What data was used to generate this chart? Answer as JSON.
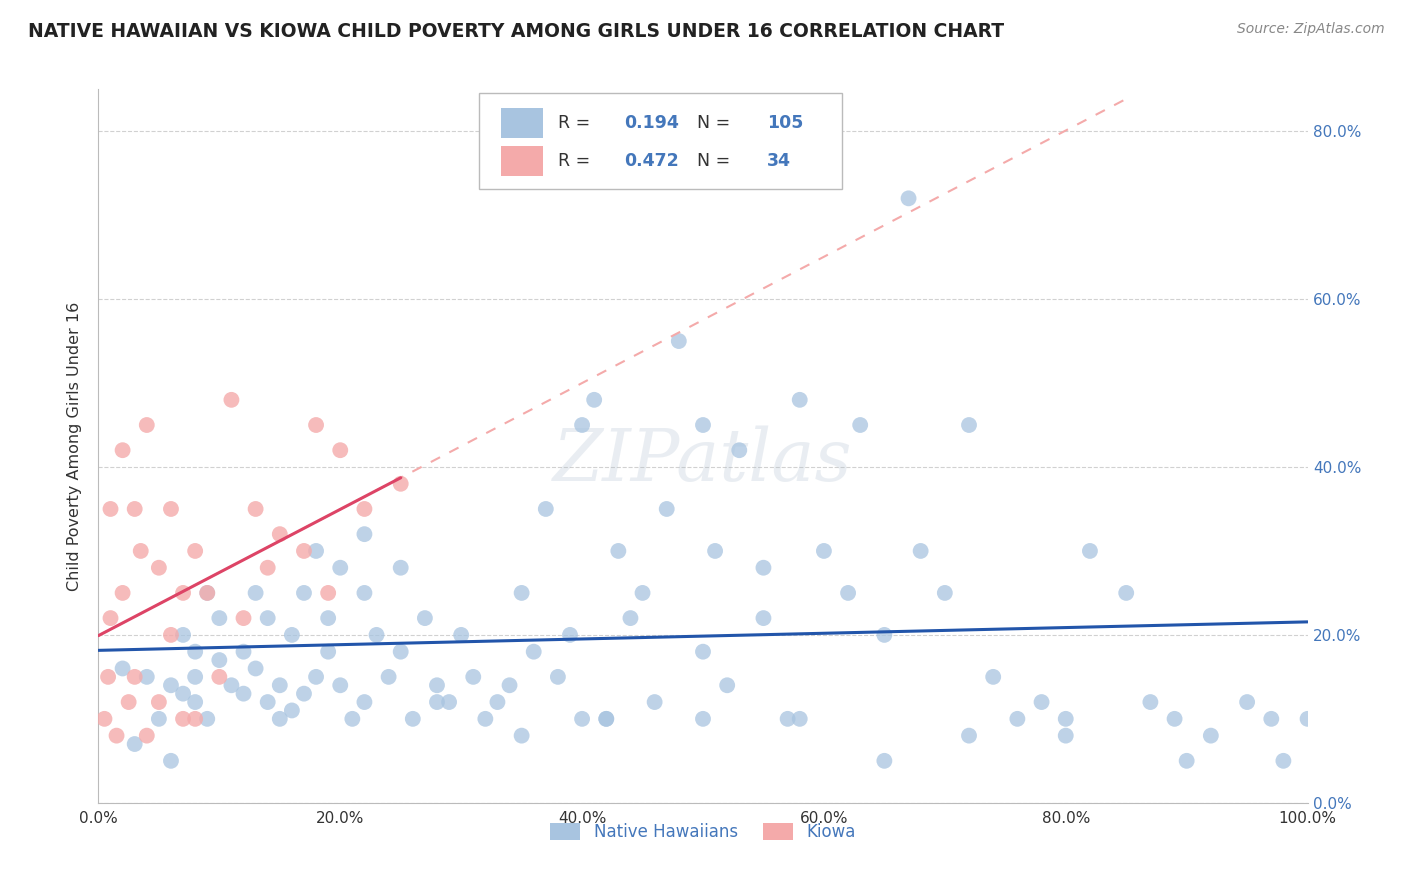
{
  "title": "NATIVE HAWAIIAN VS KIOWA CHILD POVERTY AMONG GIRLS UNDER 16 CORRELATION CHART",
  "source": "Source: ZipAtlas.com",
  "ylabel": "Child Poverty Among Girls Under 16",
  "xlim": [
    0.0,
    1.0
  ],
  "ylim": [
    0.0,
    0.85
  ],
  "x_ticks": [
    0.0,
    0.2,
    0.4,
    0.6,
    0.8,
    1.0
  ],
  "x_ticklabels": [
    "0.0%",
    "20.0%",
    "40.0%",
    "60.0%",
    "80.0%",
    "100.0%"
  ],
  "y_ticks": [
    0.0,
    0.2,
    0.4,
    0.6,
    0.8
  ],
  "y_ticklabels": [
    "0.0%",
    "20.0%",
    "40.0%",
    "60.0%",
    "80.0%"
  ],
  "legend1_label": "Native Hawaiians",
  "legend2_label": "Kiowa",
  "r1": 0.194,
  "n1": 105,
  "r2": 0.472,
  "n2": 34,
  "blue_color": "#A8C4E0",
  "pink_color": "#F4AAAA",
  "blue_line_color": "#2255AA",
  "pink_line_color": "#DD4466",
  "pink_dash_color": "#F4AAAA",
  "background_color": "#FFFFFF",
  "nhaw_x": [
    0.02,
    0.04,
    0.05,
    0.06,
    0.07,
    0.07,
    0.08,
    0.08,
    0.09,
    0.09,
    0.1,
    0.1,
    0.11,
    0.12,
    0.12,
    0.13,
    0.13,
    0.14,
    0.14,
    0.15,
    0.16,
    0.16,
    0.17,
    0.17,
    0.18,
    0.19,
    0.19,
    0.2,
    0.2,
    0.21,
    0.22,
    0.22,
    0.23,
    0.24,
    0.25,
    0.25,
    0.26,
    0.27,
    0.28,
    0.29,
    0.3,
    0.31,
    0.32,
    0.33,
    0.34,
    0.35,
    0.36,
    0.37,
    0.38,
    0.39,
    0.4,
    0.4,
    0.41,
    0.42,
    0.43,
    0.44,
    0.45,
    0.46,
    0.47,
    0.48,
    0.5,
    0.5,
    0.51,
    0.52,
    0.53,
    0.55,
    0.55,
    0.57,
    0.58,
    0.6,
    0.62,
    0.63,
    0.65,
    0.67,
    0.68,
    0.7,
    0.72,
    0.74,
    0.76,
    0.78,
    0.8,
    0.82,
    0.85,
    0.87,
    0.89,
    0.92,
    0.95,
    0.97,
    0.98,
    1.0,
    0.03,
    0.06,
    0.08,
    0.15,
    0.18,
    0.22,
    0.28,
    0.35,
    0.42,
    0.5,
    0.58,
    0.65,
    0.72,
    0.8,
    0.9
  ],
  "nhaw_y": [
    0.16,
    0.15,
    0.1,
    0.14,
    0.13,
    0.2,
    0.12,
    0.18,
    0.25,
    0.1,
    0.17,
    0.22,
    0.14,
    0.13,
    0.18,
    0.16,
    0.25,
    0.12,
    0.22,
    0.14,
    0.11,
    0.2,
    0.13,
    0.25,
    0.15,
    0.22,
    0.18,
    0.14,
    0.28,
    0.1,
    0.12,
    0.32,
    0.2,
    0.15,
    0.18,
    0.28,
    0.1,
    0.22,
    0.14,
    0.12,
    0.2,
    0.15,
    0.1,
    0.12,
    0.14,
    0.25,
    0.18,
    0.35,
    0.15,
    0.2,
    0.45,
    0.1,
    0.48,
    0.1,
    0.3,
    0.22,
    0.25,
    0.12,
    0.35,
    0.55,
    0.45,
    0.1,
    0.3,
    0.14,
    0.42,
    0.28,
    0.22,
    0.1,
    0.48,
    0.3,
    0.25,
    0.45,
    0.2,
    0.72,
    0.3,
    0.25,
    0.45,
    0.15,
    0.1,
    0.12,
    0.08,
    0.3,
    0.25,
    0.12,
    0.1,
    0.08,
    0.12,
    0.1,
    0.05,
    0.1,
    0.07,
    0.05,
    0.15,
    0.1,
    0.3,
    0.25,
    0.12,
    0.08,
    0.1,
    0.18,
    0.1,
    0.05,
    0.08,
    0.1,
    0.05
  ],
  "kiowa_x": [
    0.005,
    0.008,
    0.01,
    0.01,
    0.015,
    0.02,
    0.02,
    0.025,
    0.03,
    0.03,
    0.035,
    0.04,
    0.04,
    0.05,
    0.05,
    0.06,
    0.06,
    0.07,
    0.07,
    0.08,
    0.08,
    0.09,
    0.1,
    0.11,
    0.12,
    0.13,
    0.14,
    0.15,
    0.17,
    0.18,
    0.19,
    0.2,
    0.22,
    0.25
  ],
  "kiowa_y": [
    0.1,
    0.15,
    0.22,
    0.35,
    0.08,
    0.25,
    0.42,
    0.12,
    0.15,
    0.35,
    0.3,
    0.08,
    0.45,
    0.12,
    0.28,
    0.2,
    0.35,
    0.25,
    0.1,
    0.1,
    0.3,
    0.25,
    0.15,
    0.48,
    0.22,
    0.35,
    0.28,
    0.32,
    0.3,
    0.45,
    0.25,
    0.42,
    0.35,
    0.38
  ]
}
